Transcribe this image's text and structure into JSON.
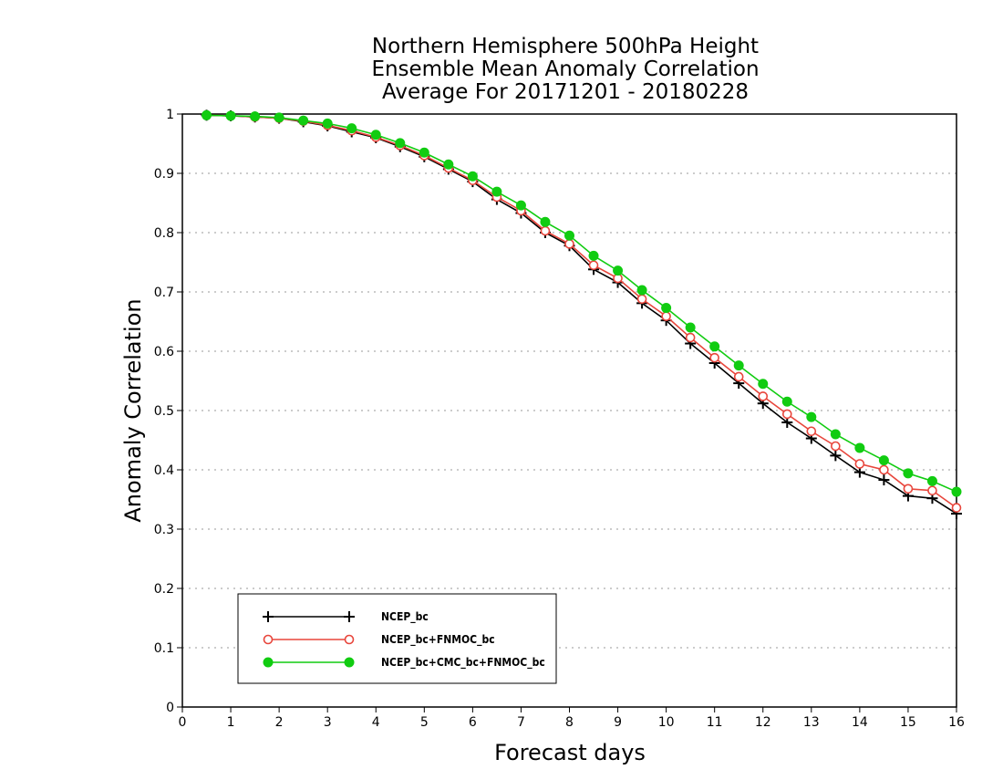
{
  "chart_data": {
    "type": "line",
    "title": [
      "Northern Hemisphere 500hPa Height",
      "Ensemble Mean Anomaly Correlation",
      "Average For 20171201 - 20180228"
    ],
    "xlabel": "Forecast days",
    "ylabel": "Anomaly Correlation",
    "xlim": [
      0,
      16
    ],
    "ylim": [
      0,
      1
    ],
    "xticks": [
      "0",
      "1",
      "2",
      "3",
      "4",
      "5",
      "6",
      "7",
      "8",
      "9",
      "10",
      "11",
      "12",
      "13",
      "14",
      "15",
      "16"
    ],
    "yticks": [
      "0",
      "0.1",
      "0.2",
      "0.3",
      "0.4",
      "0.5",
      "0.6",
      "0.7",
      "0.8",
      "0.9",
      "1"
    ],
    "grid": true,
    "legend_position": "lower-left",
    "x": [
      0.5,
      1,
      1.5,
      2,
      2.5,
      3,
      3.5,
      4,
      4.5,
      5,
      5.5,
      6,
      6.5,
      7,
      7.5,
      8,
      8.5,
      9,
      9.5,
      10,
      10.5,
      11,
      11.5,
      12,
      12.5,
      13,
      13.5,
      14,
      14.5,
      15,
      15.5,
      16
    ],
    "series": [
      {
        "name": "NCEP_bc",
        "color": "#000000",
        "marker": "plus",
        "values": [
          0.998,
          0.997,
          0.995,
          0.993,
          0.987,
          0.98,
          0.97,
          0.96,
          0.945,
          0.928,
          0.907,
          0.886,
          0.856,
          0.833,
          0.8,
          0.778,
          0.738,
          0.716,
          0.681,
          0.652,
          0.613,
          0.58,
          0.546,
          0.512,
          0.48,
          0.453,
          0.424,
          0.396,
          0.383,
          0.356,
          0.352,
          0.326
        ]
      },
      {
        "name": "NCEP_bc+FNMOC_bc",
        "color": "#e8463c",
        "marker": "circle-open",
        "values": [
          0.998,
          0.997,
          0.995,
          0.993,
          0.988,
          0.981,
          0.972,
          0.961,
          0.947,
          0.93,
          0.909,
          0.888,
          0.86,
          0.837,
          0.803,
          0.781,
          0.745,
          0.723,
          0.688,
          0.659,
          0.623,
          0.589,
          0.557,
          0.524,
          0.494,
          0.465,
          0.44,
          0.41,
          0.4,
          0.368,
          0.365,
          0.336
        ]
      },
      {
        "name": "NCEP_bc+CMC_bc+FNMOC_bc",
        "color": "#11cc11",
        "marker": "circle-filled",
        "values": [
          0.998,
          0.997,
          0.996,
          0.994,
          0.989,
          0.984,
          0.976,
          0.965,
          0.951,
          0.935,
          0.915,
          0.895,
          0.869,
          0.846,
          0.818,
          0.795,
          0.761,
          0.736,
          0.703,
          0.673,
          0.64,
          0.608,
          0.576,
          0.545,
          0.515,
          0.489,
          0.46,
          0.437,
          0.416,
          0.394,
          0.381,
          0.363
        ]
      }
    ]
  }
}
